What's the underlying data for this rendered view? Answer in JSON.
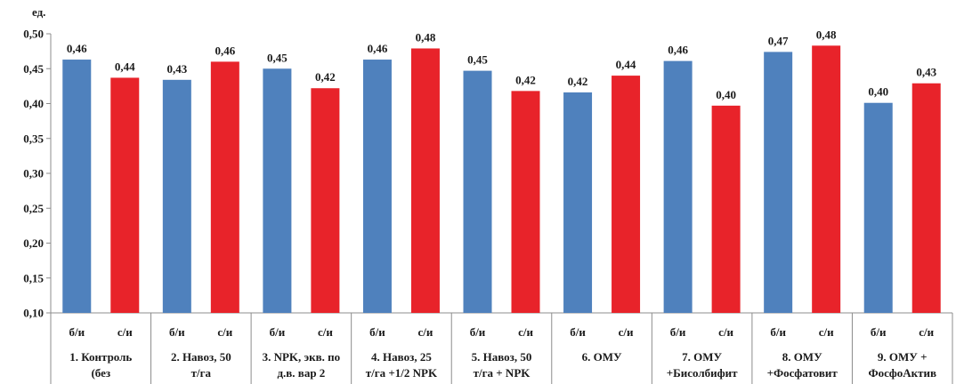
{
  "chart_data": {
    "type": "bar",
    "ylabel": "ед.",
    "ylim": [
      0.1,
      0.5
    ],
    "ytick_step": 0.05,
    "yticks": [
      "0,10",
      "0,15",
      "0,20",
      "0,25",
      "0,30",
      "0,35",
      "0,40",
      "0,45",
      "0,50"
    ],
    "grid": false,
    "legend": "none",
    "groups": [
      {
        "label_lines": [
          "1. Контроль",
          "(без"
        ],
        "bars": [
          {
            "sub": "б/и",
            "value": 0.463,
            "label": "0,46",
            "color": "#4f81bd"
          },
          {
            "sub": "с/и",
            "value": 0.437,
            "label": "0,44",
            "color": "#e8232a"
          }
        ]
      },
      {
        "label_lines": [
          "2. Навоз, 50",
          "т/га"
        ],
        "bars": [
          {
            "sub": "б/и",
            "value": 0.434,
            "label": "0,43",
            "color": "#4f81bd"
          },
          {
            "sub": "с/и",
            "value": 0.46,
            "label": "0,46",
            "color": "#e8232a"
          }
        ]
      },
      {
        "label_lines": [
          "3. NPK, экв. по",
          "д.в. вар 2"
        ],
        "bars": [
          {
            "sub": "б/и",
            "value": 0.45,
            "label": "0,45",
            "color": "#4f81bd"
          },
          {
            "sub": "с/и",
            "value": 0.422,
            "label": "0,42",
            "color": "#e8232a"
          }
        ]
      },
      {
        "label_lines": [
          "4. Навоз, 25",
          "т/га +1/2 NPK"
        ],
        "bars": [
          {
            "sub": "б/и",
            "value": 0.463,
            "label": "0,46",
            "color": "#4f81bd"
          },
          {
            "sub": "с/и",
            "value": 0.479,
            "label": "0,48",
            "color": "#e8232a"
          }
        ]
      },
      {
        "label_lines": [
          "5. Навоз, 50",
          "т/га + NPK"
        ],
        "bars": [
          {
            "sub": "б/и",
            "value": 0.447,
            "label": "0,45",
            "color": "#4f81bd"
          },
          {
            "sub": "с/и",
            "value": 0.418,
            "label": "0,42",
            "color": "#e8232a"
          }
        ]
      },
      {
        "label_lines": [
          "6. ОМУ"
        ],
        "bars": [
          {
            "sub": "б/и",
            "value": 0.416,
            "label": "0,42",
            "color": "#4f81bd"
          },
          {
            "sub": "с/и",
            "value": 0.44,
            "label": "0,44",
            "color": "#e8232a"
          }
        ]
      },
      {
        "label_lines": [
          "7. ОМУ",
          "+Бисолбифит"
        ],
        "bars": [
          {
            "sub": "б/и",
            "value": 0.461,
            "label": "0,46",
            "color": "#4f81bd"
          },
          {
            "sub": "с/и",
            "value": 0.397,
            "label": "0,40",
            "color": "#e8232a"
          }
        ]
      },
      {
        "label_lines": [
          "8. ОМУ",
          "+Фосфатовит"
        ],
        "bars": [
          {
            "sub": "б/и",
            "value": 0.474,
            "label": "0,47",
            "color": "#4f81bd"
          },
          {
            "sub": "с/и",
            "value": 0.483,
            "label": "0,48",
            "color": "#e8232a"
          }
        ]
      },
      {
        "label_lines": [
          "9. ОМУ +",
          "ФосфоАктив"
        ],
        "bars": [
          {
            "sub": "б/и",
            "value": 0.401,
            "label": "0,40",
            "color": "#4f81bd"
          },
          {
            "sub": "с/и",
            "value": 0.429,
            "label": "0,43",
            "color": "#e8232a"
          }
        ]
      }
    ]
  }
}
